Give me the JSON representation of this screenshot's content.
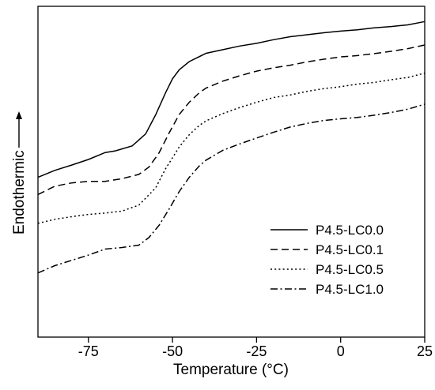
{
  "chart_data": {
    "type": "line",
    "title": "",
    "xlabel": "Temperature (°C)",
    "ylabel": "Endothermic",
    "xlim": [
      -90,
      25
    ],
    "ylim": [
      0,
      100
    ],
    "x_ticks": [
      -75,
      -50,
      -25,
      0,
      25
    ],
    "x_tick_labels": [
      "-75",
      "-50",
      "-25",
      "0",
      "25"
    ],
    "y_ticks_shown": false,
    "grid": false,
    "legend_position": "bottom-right",
    "series": [
      {
        "name": "P4.5-LC0.0",
        "style": "solid",
        "x": [
          -90,
          -85,
          -80,
          -75,
          -70,
          -67,
          -62,
          -58,
          -55,
          -52,
          -50,
          -48,
          -45,
          -40,
          -35,
          -30,
          -25,
          -20,
          -15,
          -10,
          -5,
          0,
          5,
          10,
          15,
          20,
          25
        ],
        "y": [
          48.3,
          50.4,
          52.0,
          53.7,
          55.8,
          56.3,
          57.8,
          61.4,
          67.2,
          74.0,
          78.1,
          80.8,
          83.3,
          85.8,
          86.9,
          88.0,
          88.8,
          89.9,
          90.8,
          91.4,
          92.0,
          92.5,
          92.9,
          93.5,
          93.9,
          94.4,
          95.4
        ]
      },
      {
        "name": "P4.5-LC0.1",
        "style": "dashed",
        "x": [
          -90,
          -85,
          -80,
          -75,
          -70,
          -65,
          -60,
          -57,
          -54,
          -51,
          -48,
          -45,
          -42,
          -40,
          -35,
          -30,
          -25,
          -20,
          -15,
          -10,
          -5,
          0,
          5,
          10,
          15,
          20,
          25
        ],
        "y": [
          43.1,
          45.6,
          46.6,
          47.1,
          47.1,
          47.9,
          49.2,
          51.4,
          55.7,
          61.7,
          67.3,
          71.0,
          73.9,
          75.3,
          77.4,
          79.0,
          80.4,
          81.4,
          82.2,
          83.2,
          84.0,
          84.7,
          85.1,
          85.7,
          86.4,
          87.2,
          88.3
        ]
      },
      {
        "name": "P4.5-LC0.5",
        "style": "dotted",
        "x": [
          -90,
          -85,
          -80,
          -75,
          -70,
          -65,
          -60,
          -55,
          -52,
          -50,
          -48,
          -45,
          -42,
          -40,
          -35,
          -30,
          -25,
          -20,
          -15,
          -10,
          -5,
          0,
          5,
          10,
          15,
          20,
          25
        ],
        "y": [
          34.4,
          35.6,
          36.4,
          37.1,
          37.5,
          38.1,
          39.9,
          45.1,
          51.0,
          54.2,
          57.5,
          61.2,
          64.0,
          65.4,
          67.6,
          69.4,
          71.0,
          72.4,
          73.2,
          74.3,
          75.1,
          75.7,
          76.5,
          77.0,
          77.8,
          78.5,
          79.8
        ]
      },
      {
        "name": "P4.5-LC1.0",
        "style": "dashdot",
        "x": [
          -90,
          -85,
          -80,
          -75,
          -70,
          -65,
          -60,
          -57,
          -54,
          -51,
          -48,
          -45,
          -42,
          -40,
          -35,
          -30,
          -25,
          -20,
          -15,
          -10,
          -5,
          0,
          5,
          10,
          15,
          20,
          25
        ],
        "y": [
          19.4,
          21.6,
          23.2,
          24.8,
          26.6,
          27.1,
          27.8,
          30.1,
          33.8,
          38.7,
          44.0,
          48.3,
          51.8,
          53.5,
          56.5,
          58.4,
          60.2,
          61.9,
          63.5,
          64.6,
          65.5,
          66.0,
          66.4,
          67.1,
          67.9,
          68.9,
          70.4
        ]
      }
    ]
  }
}
